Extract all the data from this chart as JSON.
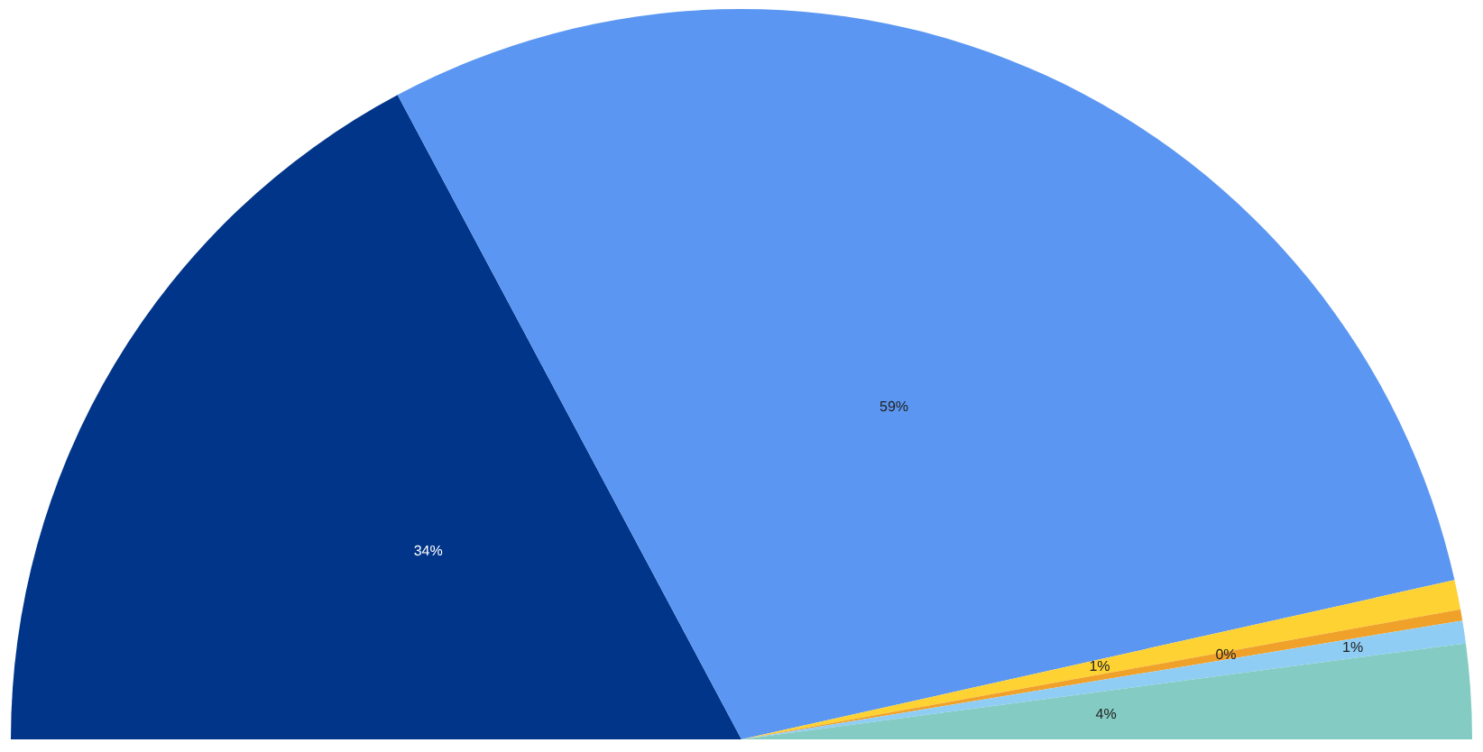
{
  "chart_data": {
    "type": "pie",
    "categories": [
      null,
      null,
      null,
      null,
      null,
      null
    ],
    "values": [
      34.4,
      58.6,
      1.3,
      0.5,
      1.0,
      4.2
    ],
    "colors": [
      "#00358a",
      "#5b97f2",
      "#fed233",
      "#f0a12a",
      "#90cdf4",
      "#83cbc3"
    ],
    "value_labels": [
      "34%",
      "59%",
      "1%",
      "0%",
      "1%",
      "4%"
    ]
  }
}
